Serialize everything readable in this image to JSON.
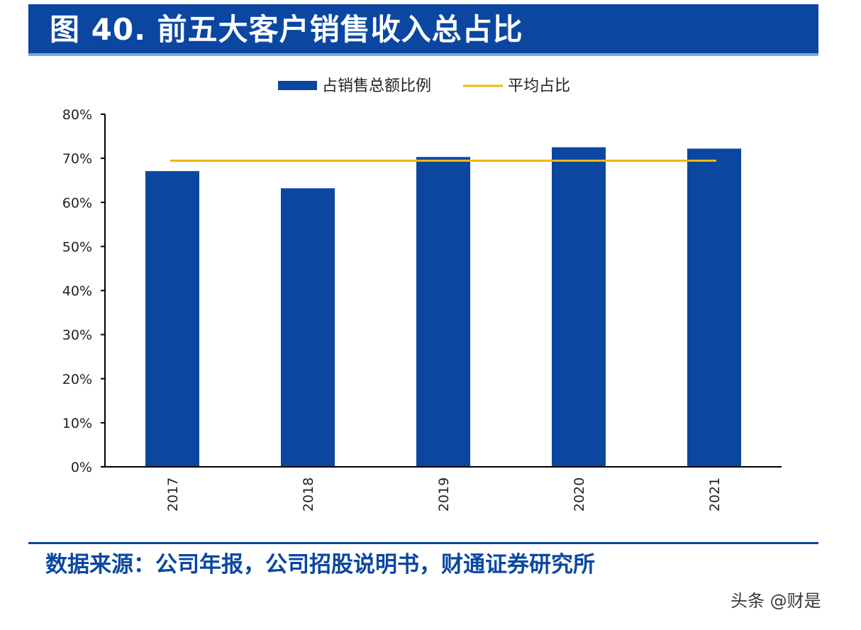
{
  "header": {
    "title": "图 40. 前五大客户销售收入总占比"
  },
  "chart_data": {
    "type": "bar",
    "categories": [
      "2017",
      "2018",
      "2019",
      "2020",
      "2021"
    ],
    "series": [
      {
        "name": "占销售总额比例",
        "kind": "bar",
        "color": "#0b47a1",
        "values": [
          0.671,
          0.632,
          0.703,
          0.725,
          0.722
        ]
      },
      {
        "name": "平均占比",
        "kind": "line",
        "color": "#f2b705",
        "values": [
          0.6945,
          0.6945,
          0.6945,
          0.6945,
          0.6945
        ]
      }
    ],
    "ylim": [
      0,
      0.8
    ],
    "yticks": [
      0,
      0.1,
      0.2,
      0.3,
      0.4,
      0.5,
      0.6,
      0.7,
      0.8
    ],
    "ytick_labels": [
      "0%",
      "10%",
      "20%",
      "30%",
      "40%",
      "50%",
      "60%",
      "70%",
      "80%"
    ],
    "legend_position": "top-center",
    "grid": false,
    "xtick_rotation": "vertical"
  },
  "footer": {
    "source": "数据来源：公司年报，公司招股说明书，财通证券研究所",
    "watermark": "头条 @财是"
  }
}
